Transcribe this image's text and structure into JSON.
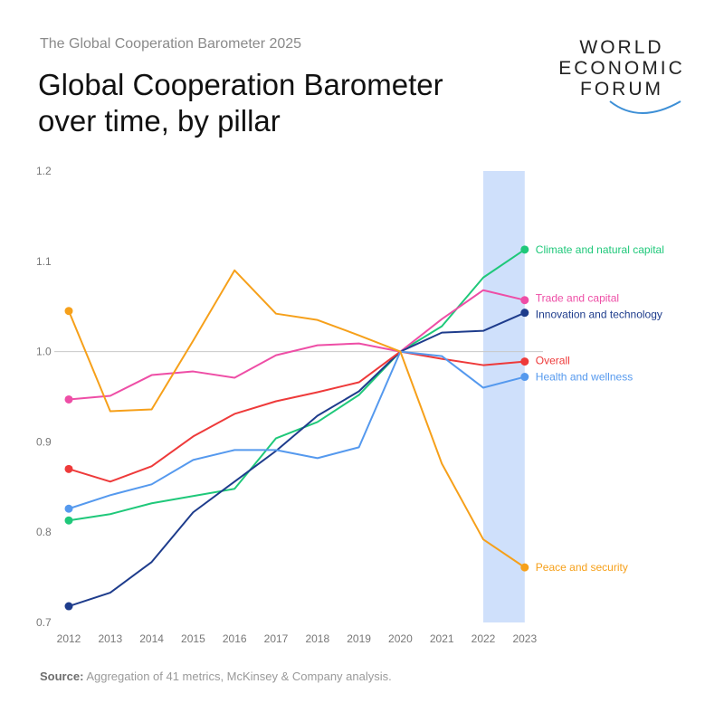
{
  "header": {
    "subtitle": "The Global Cooperation Barometer 2025",
    "title_line1": "Global Cooperation Barometer",
    "title_line2": "over time, by pillar"
  },
  "logo": {
    "line1": "WORLD",
    "line2": "ECONOMIC",
    "line3": "FORUM",
    "arc_color": "#3d8fd6"
  },
  "footer": {
    "source_label": "Source:",
    "source_text": "Aggregation of 41 metrics, McKinsey & Company analysis."
  },
  "chart_data": {
    "type": "line",
    "x": [
      "2012",
      "2013",
      "2014",
      "2015",
      "2016",
      "2017",
      "2018",
      "2019",
      "2020",
      "2021",
      "2022",
      "2023"
    ],
    "ylim": [
      0.7,
      1.2
    ],
    "yticks": [
      "0.7",
      "0.8",
      "0.9",
      "1.0",
      "1.1",
      "1.2"
    ],
    "reference_line": 1.0,
    "highlight_range": [
      "2022",
      "2023"
    ],
    "highlight_color": "#cfe0fb",
    "series": [
      {
        "name": "Climate and natural capital",
        "color": "#1fc87a",
        "values": [
          0.813,
          0.82,
          0.832,
          0.84,
          0.848,
          0.904,
          0.922,
          0.952,
          1.0,
          1.028,
          1.082,
          1.113
        ]
      },
      {
        "name": "Trade and capital",
        "color": "#ee4ea6",
        "values": [
          0.947,
          0.951,
          0.974,
          0.978,
          0.971,
          0.996,
          1.007,
          1.009,
          1.0,
          1.036,
          1.068,
          1.057
        ]
      },
      {
        "name": "Innovation and technology",
        "color": "#1e3c8c",
        "values": [
          0.718,
          0.733,
          0.767,
          0.822,
          0.856,
          0.89,
          0.929,
          0.956,
          1.0,
          1.021,
          1.023,
          1.043
        ]
      },
      {
        "name": "Overall",
        "color": "#ee3a3a",
        "values": [
          0.87,
          0.856,
          0.873,
          0.906,
          0.931,
          0.945,
          0.955,
          0.966,
          1.0,
          0.992,
          0.985,
          0.989
        ]
      },
      {
        "name": "Health and wellness",
        "color": "#5599ee",
        "values": [
          0.826,
          0.841,
          0.853,
          0.88,
          0.891,
          0.891,
          0.882,
          0.894,
          1.0,
          0.995,
          0.96,
          0.972
        ]
      },
      {
        "name": "Peace and security",
        "color": "#f6a01a",
        "values": [
          1.045,
          0.934,
          0.936,
          1.012,
          1.09,
          1.042,
          1.035,
          1.018,
          1.0,
          0.876,
          0.792,
          0.761
        ]
      }
    ]
  }
}
